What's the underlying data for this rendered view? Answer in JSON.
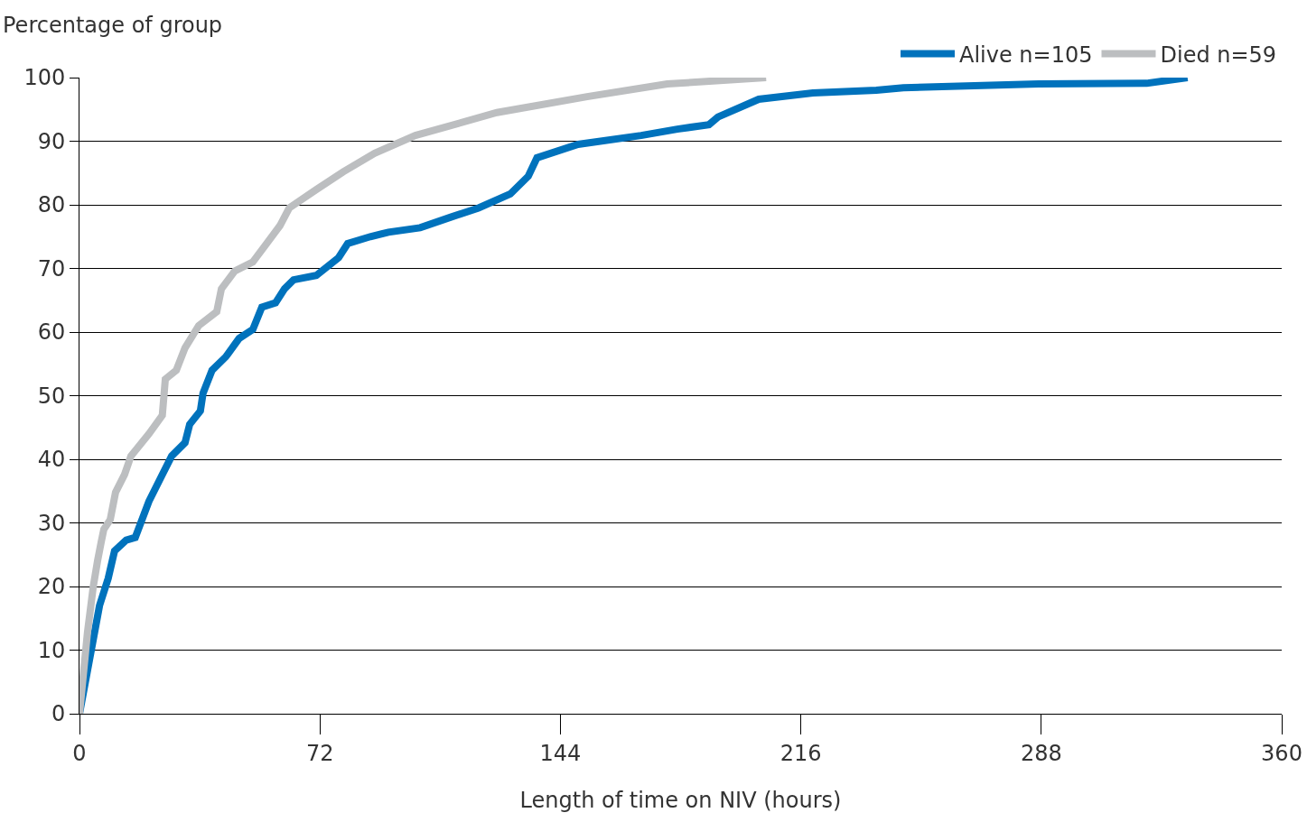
{
  "chart_data": {
    "type": "line",
    "ylabel": "Percentage of group",
    "xlabel": "Length of time on NIV (hours)",
    "xlim": [
      0,
      360
    ],
    "xticks": [
      0,
      72,
      144,
      216,
      288,
      360
    ],
    "ylim": [
      0,
      100
    ],
    "yticks": [
      0,
      10,
      20,
      30,
      40,
      50,
      60,
      70,
      80,
      90,
      100
    ],
    "grid": "y",
    "legend": "top right",
    "marker": "none",
    "line_style": "solid",
    "series": [
      {
        "name": "Alive n=105",
        "color": "#0072bc",
        "x": [
          0,
          6,
          8.6,
          10.5,
          14,
          16.7,
          20.8,
          24.8,
          27.6,
          31.6,
          33,
          36.2,
          37,
          39.7,
          43.8,
          47.8,
          51.9,
          54.6,
          58.7,
          61.4,
          64.1,
          70.9,
          77.6,
          80.3,
          87.1,
          92.5,
          102,
          111.4,
          119.5,
          129,
          134.4,
          137,
          149.3,
          168.2,
          179,
          188.5,
          191.2,
          203.4,
          219.6,
          238.6,
          246.7,
          287.2,
          319.6,
          331.8
        ],
        "values": [
          0,
          17,
          21.3,
          25.6,
          27.3,
          27.7,
          33.4,
          37.6,
          40.5,
          42.6,
          45.5,
          47.6,
          50.4,
          54,
          56.1,
          59,
          60.4,
          63.9,
          64.6,
          66.8,
          68.2,
          68.9,
          71.7,
          73.9,
          75,
          75.7,
          76.4,
          78.1,
          79.5,
          81.7,
          84.5,
          87.4,
          89.5,
          90.9,
          91.9,
          92.6,
          93.8,
          96.6,
          97.6,
          98,
          98.4,
          99,
          99.1,
          100
        ]
      },
      {
        "name": "Died n=59",
        "color": "#bcbec0",
        "x": [
          0,
          2.4,
          4.1,
          5.4,
          6.5,
          7.3,
          9.2,
          10.8,
          13.5,
          15.4,
          20.8,
          24.8,
          25.7,
          29,
          31.6,
          35.7,
          41.1,
          42.5,
          46.5,
          51.9,
          56,
          60,
          62.8,
          70.9,
          79,
          88.4,
          100.6,
          125,
          152,
          176,
          205.6
        ],
        "values": [
          0,
          12.8,
          19.9,
          24,
          27,
          29,
          30.5,
          34.8,
          37.6,
          40.5,
          44,
          46.9,
          52.6,
          54,
          57.5,
          61,
          63.2,
          66.8,
          69.6,
          71,
          73.9,
          76.7,
          79.5,
          82.4,
          85.2,
          88.1,
          90.9,
          94.5,
          97,
          99,
          100
        ]
      }
    ]
  }
}
